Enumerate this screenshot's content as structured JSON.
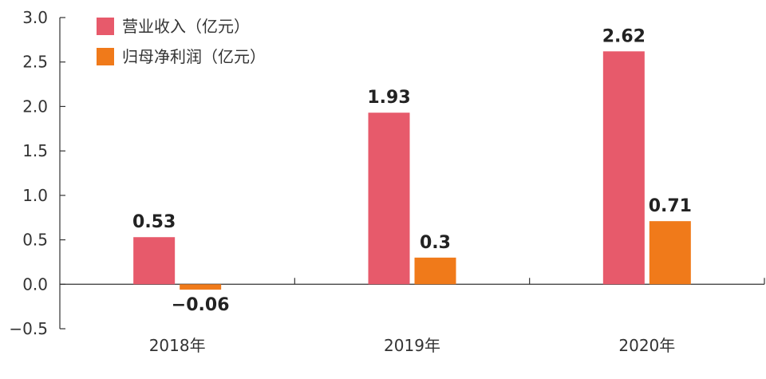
{
  "chart_data": {
    "type": "bar",
    "categories": [
      "2018年",
      "2019年",
      "2020年"
    ],
    "series": [
      {
        "name": "营业收入（亿元）",
        "values": [
          0.53,
          1.93,
          2.62
        ],
        "color": "#E75A6B"
      },
      {
        "name": "归母净利润（亿元）",
        "values": [
          -0.06,
          0.3,
          0.71
        ],
        "color": "#F07A1A"
      }
    ],
    "data_labels": [
      [
        "0.53",
        "1.93",
        "2.62"
      ],
      [
        "−0.06",
        "0.3",
        "0.71"
      ]
    ],
    "yticks": [
      "3.0",
      "2.5",
      "2.0",
      "1.5",
      "1.0",
      "0.5",
      "0.0",
      "−0.5"
    ],
    "ylim": [
      -0.5,
      3.0
    ],
    "grid": false,
    "legend_position": "top-left"
  }
}
